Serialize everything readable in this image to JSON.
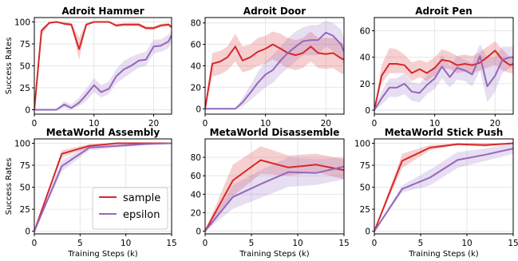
{
  "chart_data": {
    "legend": {
      "entries": [
        {
          "label": "sample",
          "color": "#d62728"
        },
        {
          "label": "epsilon",
          "color": "#9467bd"
        }
      ],
      "location": "bottom-right of the MetaWorld Assembly panel"
    },
    "panels": [
      {
        "type": "line",
        "title": "Adroit Hammer",
        "ylabel": "Success Rates",
        "xlabel": "",
        "xlim": [
          0,
          23
        ],
        "ylim": [
          -5,
          105
        ],
        "xticks": [
          0,
          10,
          20
        ],
        "yticks": [
          0,
          25,
          50,
          75,
          100
        ],
        "grid": true,
        "series": [
          {
            "name": "sample",
            "x": [
              0,
              1.2,
              2.5,
              3.7,
              5,
              6.2,
              7.5,
              8.7,
              10,
              11.2,
              12.5,
              13.7,
              15,
              16.2,
              17.5,
              18.7,
              20,
              21.2,
              22.5,
              23
            ],
            "y": [
              0,
              90,
              99,
              100,
              98,
              97,
              69,
              97,
              100,
              100,
              100,
              96,
              97,
              97,
              97,
              93,
              93,
              96,
              97,
              94
            ],
            "lower": [
              0,
              85,
              97,
              100,
              96,
              95,
              57,
              95,
              100,
              100,
              100,
              94,
              95,
              95,
              95,
              91,
              91,
              94,
              95,
              92
            ],
            "upper": [
              0,
              93,
              100,
              100,
              100,
              99,
              82,
              99,
              100,
              100,
              100,
              98,
              99,
              99,
              99,
              95,
              95,
              98,
              99,
              96
            ]
          },
          {
            "name": "epsilon",
            "x": [
              0,
              1.2,
              2.5,
              3.7,
              5,
              6.2,
              7.5,
              8.7,
              10,
              11.2,
              12.5,
              13.7,
              15,
              16.2,
              17.5,
              18.7,
              20,
              21.2,
              22.5,
              23
            ],
            "y": [
              0,
              0,
              0,
              0,
              6,
              2,
              8,
              17,
              28,
              20,
              24,
              38,
              46,
              50,
              56,
              57,
              72,
              73,
              78,
              85
            ],
            "lower": [
              0,
              0,
              0,
              0,
              2,
              0,
              4,
              10,
              20,
              14,
              18,
              30,
              36,
              42,
              48,
              50,
              64,
              66,
              70,
              78
            ],
            "upper": [
              0,
              0,
              0,
              0,
              10,
              6,
              14,
              24,
              36,
              28,
              32,
              46,
              56,
              60,
              64,
              66,
              80,
              80,
              86,
              92
            ]
          }
        ]
      },
      {
        "type": "line",
        "title": "Adroit Door",
        "ylabel": "",
        "xlabel": "",
        "xlim": [
          0,
          23
        ],
        "ylim": [
          -5,
          85
        ],
        "xticks": [
          0,
          10,
          20
        ],
        "yticks": [
          0,
          20,
          40,
          60,
          80
        ],
        "grid": true,
        "series": [
          {
            "name": "sample",
            "x": [
              0,
              1.2,
              2.5,
              3.7,
              5,
              6.2,
              7.5,
              8.7,
              10,
              11.2,
              12.5,
              13.7,
              15,
              16.2,
              17.5,
              18.7,
              20,
              21.2,
              22.5,
              23
            ],
            "y": [
              0,
              42,
              44,
              48,
              58,
              45,
              48,
              53,
              56,
              60,
              56,
              52,
              50,
              52,
              58,
              52,
              51,
              52,
              47,
              46
            ],
            "lower": [
              0,
              30,
              32,
              36,
              44,
              34,
              36,
              40,
              42,
              46,
              42,
              38,
              36,
              38,
              44,
              38,
              37,
              38,
              33,
              32
            ],
            "upper": [
              0,
              52,
              54,
              58,
              70,
              58,
              60,
              66,
              68,
              72,
              70,
              66,
              64,
              66,
              72,
              66,
              66,
              66,
              62,
              60
            ]
          },
          {
            "name": "epsilon",
            "x": [
              0,
              1.2,
              2.5,
              3.7,
              5,
              6.2,
              7.5,
              8.7,
              10,
              11.2,
              12.5,
              13.7,
              15,
              16.2,
              17.5,
              18.7,
              20,
              21.2,
              22.5,
              23
            ],
            "y": [
              0,
              0,
              0,
              0,
              0,
              6,
              15,
              24,
              32,
              36,
              45,
              52,
              58,
              63,
              64,
              64,
              71,
              68,
              60,
              53
            ],
            "lower": [
              0,
              0,
              0,
              0,
              0,
              2,
              8,
              14,
              20,
              24,
              32,
              38,
              44,
              50,
              50,
              50,
              58,
              54,
              46,
              40
            ],
            "upper": [
              0,
              0,
              0,
              0,
              0,
              10,
              22,
              34,
              44,
              50,
              58,
              66,
              72,
              76,
              78,
              78,
              82,
              80,
              74,
              66
            ]
          }
        ]
      },
      {
        "type": "line",
        "title": "Adroit Pen",
        "ylabel": "",
        "xlabel": "",
        "xlim": [
          0,
          23
        ],
        "ylim": [
          -3,
          70
        ],
        "xticks": [
          0,
          10,
          20
        ],
        "yticks": [
          0,
          20,
          40,
          60
        ],
        "grid": true,
        "series": [
          {
            "name": "sample",
            "x": [
              0,
              1.2,
              2.5,
              3.7,
              5,
              6.2,
              7.5,
              8.7,
              10,
              11.2,
              12.5,
              13.7,
              15,
              16.2,
              17.5,
              18.7,
              20,
              21.2,
              22.5,
              23
            ],
            "y": [
              0,
              26,
              35,
              35,
              34,
              28,
              31,
              28,
              32,
              38,
              37,
              34,
              35,
              34,
              36,
              40,
              45,
              38,
              34,
              35
            ],
            "lower": [
              0,
              20,
              28,
              28,
              28,
              22,
              25,
              22,
              26,
              32,
              31,
              28,
              29,
              28,
              30,
              32,
              34,
              30,
              28,
              28
            ],
            "upper": [
              0,
              34,
              47,
              46,
              42,
              36,
              38,
              36,
              40,
              46,
              44,
              41,
              42,
              41,
              44,
              48,
              52,
              46,
              40,
              42
            ]
          },
          {
            "name": "epsilon",
            "x": [
              0,
              1.2,
              2.5,
              3.7,
              5,
              6.2,
              7.5,
              8.7,
              10,
              11.2,
              12.5,
              13.7,
              15,
              16.2,
              17.5,
              18.7,
              20,
              21.2,
              22.5,
              23
            ],
            "y": [
              0,
              9,
              17,
              17,
              20,
              14,
              13,
              19,
              24,
              33,
              25,
              32,
              30,
              27,
              41,
              18,
              26,
              38,
              40,
              40
            ],
            "lower": [
              0,
              4,
              10,
              10,
              12,
              7,
              6,
              12,
              16,
              24,
              17,
              23,
              22,
              18,
              30,
              6,
              14,
              28,
              32,
              32
            ],
            "upper": [
              0,
              14,
              24,
              24,
              28,
              21,
              20,
              26,
              32,
              42,
              33,
              41,
              38,
              36,
              50,
              40,
              40,
              48,
              48,
              48
            ]
          }
        ]
      },
      {
        "type": "line",
        "title": "MetaWorld Assembly",
        "ylabel": "Success Rates",
        "xlabel": "Training Steps (k)",
        "xlim": [
          0,
          15
        ],
        "ylim": [
          -3,
          105
        ],
        "xticks": [
          0,
          5,
          10,
          15
        ],
        "yticks": [
          0,
          25,
          50,
          75,
          100
        ],
        "grid": true,
        "series": [
          {
            "name": "sample",
            "x": [
              0,
              3,
              6,
              9,
              12,
              15
            ],
            "y": [
              0,
              88,
              97,
              100,
              100,
              100
            ],
            "lower": [
              0,
              84,
              95,
              100,
              100,
              100
            ],
            "upper": [
              0,
              92,
              99,
              100,
              100,
              100
            ]
          },
          {
            "name": "epsilon",
            "x": [
              0,
              3,
              6,
              9,
              12,
              15
            ],
            "y": [
              0,
              74,
              95,
              97,
              99,
              100
            ],
            "lower": [
              0,
              68,
              92,
              95,
              98,
              100
            ],
            "upper": [
              0,
              80,
              98,
              99,
              100,
              100
            ]
          }
        ]
      },
      {
        "type": "line",
        "title": "MetaWorld Disassemble",
        "ylabel": "",
        "xlabel": "Training Steps (k)",
        "xlim": [
          0,
          15
        ],
        "ylim": [
          -3,
          100
        ],
        "xticks": [
          0,
          5,
          10,
          15
        ],
        "yticks": [
          0,
          20,
          40,
          60,
          80
        ],
        "grid": true,
        "series": [
          {
            "name": "sample",
            "x": [
              0,
              3,
              6,
              9,
              12,
              15
            ],
            "y": [
              0,
              55,
              77,
              69,
              72,
              66
            ],
            "lower": [
              0,
              38,
              62,
              60,
              64,
              56
            ],
            "upper": [
              0,
              72,
              92,
              82,
              84,
              78
            ]
          },
          {
            "name": "epsilon",
            "x": [
              0,
              3,
              6,
              9,
              12,
              15
            ],
            "y": [
              0,
              37,
              51,
              64,
              63,
              70
            ],
            "lower": [
              0,
              24,
              36,
              48,
              50,
              56
            ],
            "upper": [
              0,
              50,
              66,
              80,
              78,
              80
            ]
          }
        ]
      },
      {
        "type": "line",
        "title": "MetaWorld Stick Push",
        "ylabel": "",
        "xlabel": "Training Steps (k)",
        "xlim": [
          0,
          15
        ],
        "ylim": [
          -3,
          105
        ],
        "xticks": [
          0,
          5,
          10,
          15
        ],
        "yticks": [
          0,
          25,
          50,
          75,
          100
        ],
        "grid": true,
        "series": [
          {
            "name": "sample",
            "x": [
              0,
              3,
              6,
              9,
              12,
              15
            ],
            "y": [
              0,
              80,
              95,
              99,
              98,
              100
            ],
            "lower": [
              0,
              72,
              92,
              98,
              96,
              100
            ],
            "upper": [
              0,
              88,
              98,
              100,
              100,
              100
            ]
          },
          {
            "name": "epsilon",
            "x": [
              0,
              3,
              6,
              9,
              12,
              15
            ],
            "y": [
              0,
              48,
              61,
              81,
              87,
              94
            ],
            "lower": [
              0,
              44,
              52,
              72,
              80,
              88
            ],
            "upper": [
              0,
              52,
              70,
              90,
              94,
              100
            ]
          }
        ]
      }
    ]
  }
}
